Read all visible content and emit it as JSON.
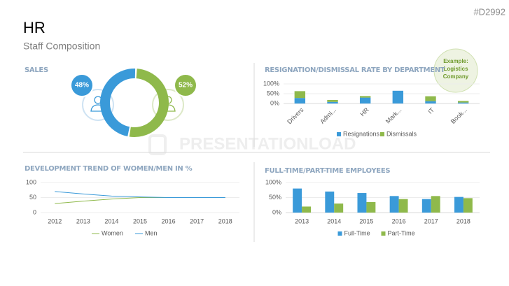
{
  "header": {
    "title": "HR",
    "subtitle": "Staff Composition",
    "code": "#D2992",
    "watermark": "PRESENTATIONLOAD",
    "example": "Example: Logistics Company"
  },
  "chart_data": [
    {
      "type": "pie",
      "title": "SALES",
      "values": [
        48,
        52
      ],
      "value_labels": [
        "48%",
        "52%"
      ],
      "colors": [
        "#3a9ad9",
        "#8fb94b"
      ]
    },
    {
      "type": "bar",
      "stacked": true,
      "title": "RESIGNATION/DISMISSAL RATE BY DEPARTMENT",
      "categories": [
        "Drivers",
        "Admi...",
        "HR",
        "Mark...",
        "IT",
        "Book..."
      ],
      "series": [
        {
          "name": "Resignations",
          "color": "#3a9ad9",
          "values": [
            28,
            8,
            30,
            65,
            12,
            5
          ]
        },
        {
          "name": "Dismissals",
          "color": "#8fb94b",
          "values": [
            35,
            10,
            8,
            0,
            25,
            8
          ]
        }
      ],
      "ylim": [
        0,
        100
      ],
      "yticks": [
        {
          "value": 0,
          "label": "0%"
        },
        {
          "value": 50,
          "label": "50%"
        },
        {
          "value": 100,
          "label": "100%"
        }
      ],
      "grid": true,
      "legend": "bottom"
    },
    {
      "type": "line",
      "title": "DEVELOPMENT TREND OF WOMEN/MEN IN %",
      "categories": [
        "2012",
        "2013",
        "2014",
        "2015",
        "2016",
        "2017",
        "2018"
      ],
      "series": [
        {
          "name": "Women",
          "color": "#8fb94b",
          "values": [
            30,
            38,
            45,
            50,
            50,
            50,
            50
          ]
        },
        {
          "name": "Men",
          "color": "#3a9ad9",
          "values": [
            70,
            62,
            55,
            52,
            50,
            50,
            50
          ]
        }
      ],
      "ylim": [
        0,
        100
      ],
      "yticks": [
        0,
        50,
        100
      ],
      "grid": true,
      "legend": "bottom"
    },
    {
      "type": "bar",
      "stacked": false,
      "title": "FULL-TIME/PART-TIME EMPLOYEES",
      "categories": [
        "2013",
        "2014",
        "2015",
        "2016",
        "2017",
        "2018"
      ],
      "series": [
        {
          "name": "Full-Time",
          "color": "#3a9ad9",
          "values": [
            80,
            70,
            65,
            55,
            45,
            52
          ]
        },
        {
          "name": "Part-Time",
          "color": "#8fb94b",
          "values": [
            20,
            30,
            35,
            45,
            55,
            48
          ]
        }
      ],
      "ylim": [
        0,
        100
      ],
      "yticks": [
        {
          "value": 0,
          "label": "0%"
        },
        {
          "value": 50,
          "label": "50%"
        },
        {
          "value": 100,
          "label": "100%"
        }
      ],
      "grid": true,
      "legend": "bottom"
    }
  ]
}
